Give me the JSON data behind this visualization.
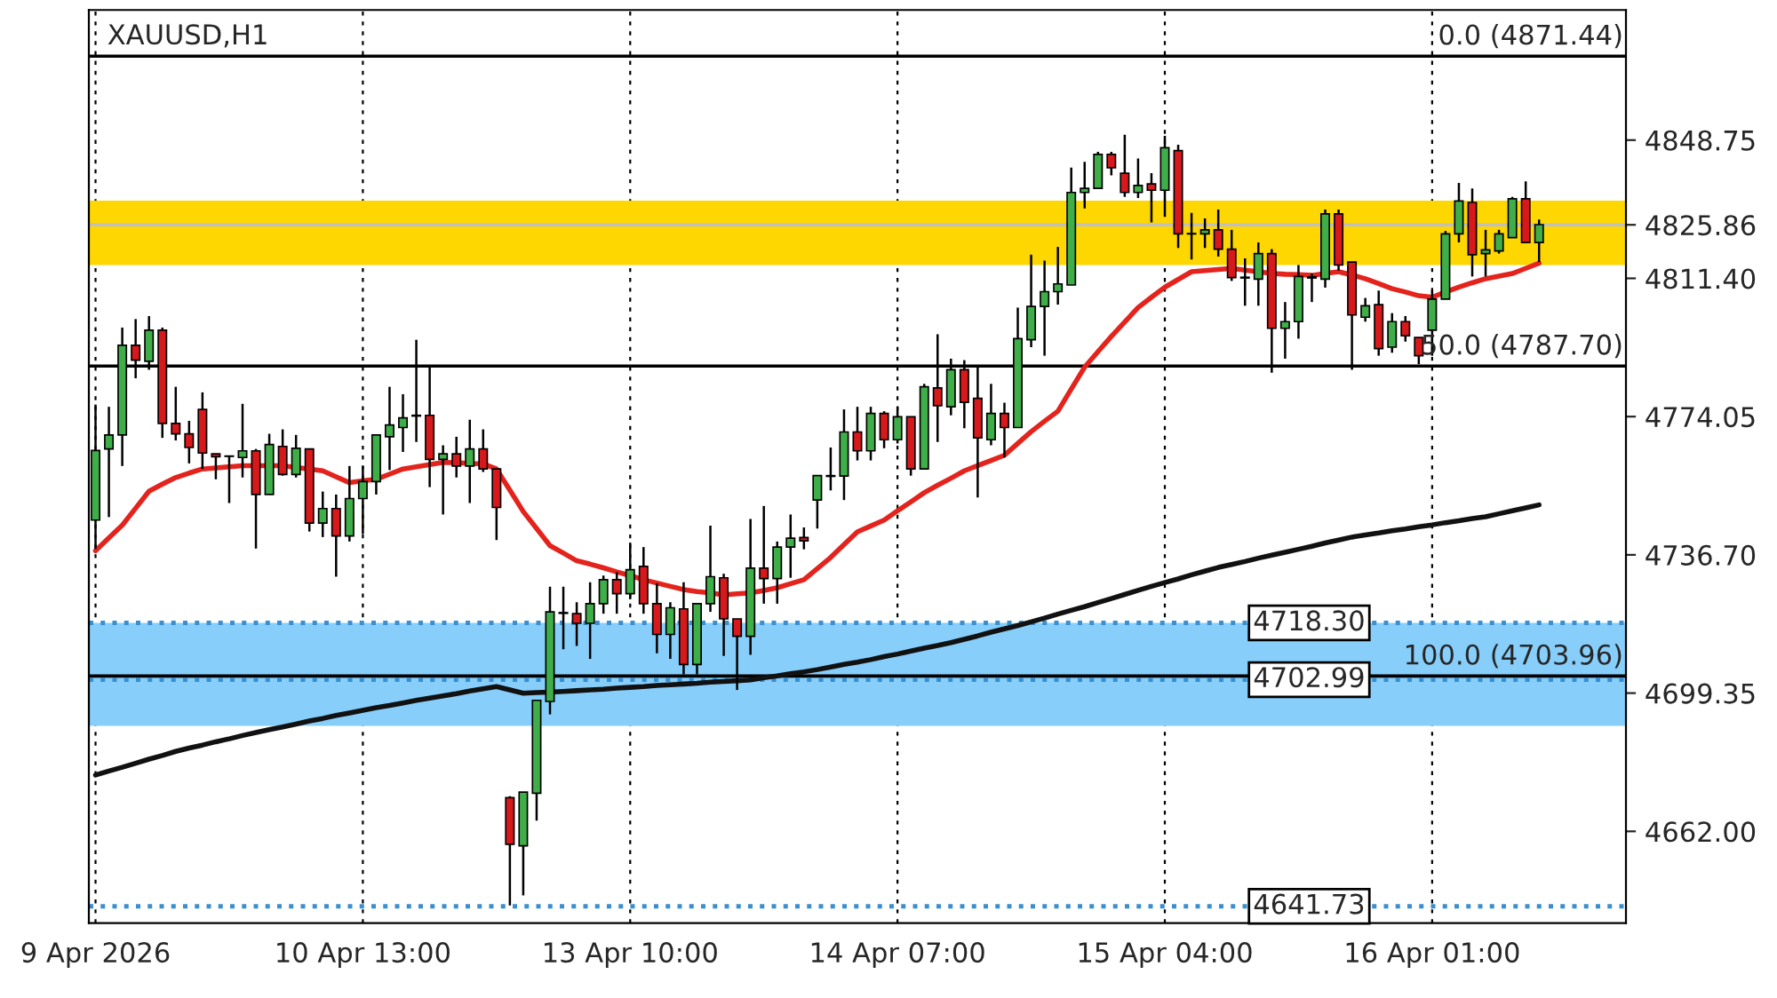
{
  "chart_data": {
    "type": "candlestick",
    "title": "XAUUSD,H1",
    "categories": [
      "9 Apr 2026",
      null,
      null,
      null,
      null,
      null,
      null,
      null,
      null,
      null,
      null,
      null,
      null,
      null,
      null,
      null,
      null,
      null,
      null,
      null,
      "10 Apr 13:00",
      null,
      null,
      null,
      null,
      null,
      null,
      null,
      null,
      null,
      null,
      null,
      null,
      null,
      null,
      null,
      null,
      null,
      null,
      null,
      "13 Apr 10:00",
      null,
      null,
      null,
      null,
      null,
      null,
      null,
      null,
      null,
      null,
      null,
      null,
      null,
      null,
      null,
      null,
      null,
      null,
      null,
      "14 Apr 07:00",
      null,
      null,
      null,
      null,
      null,
      null,
      null,
      null,
      null,
      null,
      null,
      null,
      null,
      null,
      null,
      null,
      null,
      null,
      null,
      "15 Apr 04:00",
      null,
      null,
      null,
      null,
      null,
      null,
      null,
      null,
      null,
      null,
      null,
      null,
      null,
      null,
      null,
      null,
      null,
      null,
      null,
      "16 Apr 01:00",
      null,
      null,
      null,
      null,
      null,
      null,
      null,
      null
    ],
    "ohlc": [
      [
        4746.1,
        4777.3,
        4738.3,
        4764.9
      ],
      [
        4765.3,
        4776.7,
        4746.9,
        4769.1
      ],
      [
        4769.1,
        4798.1,
        4760.7,
        4793.3
      ],
      [
        4793.3,
        4800.4,
        4784.4,
        4789.3
      ],
      [
        4789.0,
        4801.2,
        4786.7,
        4797.4
      ],
      [
        4797.4,
        4798.1,
        4768.3,
        4772.2
      ],
      [
        4772.2,
        4782.1,
        4767.6,
        4769.4
      ],
      [
        4769.4,
        4772.9,
        4761.4,
        4765.7
      ],
      [
        4776.0,
        4780.6,
        4759.9,
        4764.2
      ],
      [
        4764.0,
        4764.0,
        4757.1,
        4763.2
      ],
      [
        4763.4,
        4763.4,
        4750.7,
        4763.3
      ],
      [
        4763.0,
        4777.5,
        4757.6,
        4764.8
      ],
      [
        4764.8,
        4765.3,
        4738.4,
        4753.0
      ],
      [
        4753.0,
        4769.4,
        4753.0,
        4766.5
      ],
      [
        4766.0,
        4770.6,
        4758.1,
        4758.4
      ],
      [
        4758.4,
        4769.1,
        4757.6,
        4765.5
      ],
      [
        4765.3,
        4765.3,
        4743.0,
        4745.3
      ],
      [
        4745.3,
        4753.8,
        4741.5,
        4749.2
      ],
      [
        4749.2,
        4753.0,
        4730.8,
        4741.8
      ],
      [
        4741.8,
        4760.7,
        4740.3,
        4751.9
      ],
      [
        4751.9,
        4760.7,
        4742.3,
        4756.5
      ],
      [
        4756.5,
        4769.1,
        4753.0,
        4769.1
      ],
      [
        4768.6,
        4782.1,
        4759.6,
        4771.8
      ],
      [
        4771.1,
        4780.1,
        4764.5,
        4773.7
      ],
      [
        4774.2,
        4794.8,
        4767.2,
        4774.4
      ],
      [
        4774.4,
        4787.4,
        4755.0,
        4762.5
      ],
      [
        4762.5,
        4766.3,
        4747.6,
        4764.0
      ],
      [
        4764.0,
        4768.6,
        4757.6,
        4760.7
      ],
      [
        4760.7,
        4773.2,
        4750.7,
        4765.3
      ],
      [
        4765.3,
        4770.6,
        4759.1,
        4759.9
      ],
      [
        4759.9,
        4759.9,
        4740.7,
        4749.5
      ],
      [
        4671.1,
        4671.5,
        4642.0,
        4658.5
      ],
      [
        4658.1,
        4672.6,
        4644.7,
        4672.6
      ],
      [
        4672.3,
        4697.4,
        4664.9,
        4697.4
      ],
      [
        4697.1,
        4728.1,
        4693.6,
        4721.3
      ],
      [
        4721.1,
        4728.1,
        4711.2,
        4720.9
      ],
      [
        4720.8,
        4723.9,
        4712.1,
        4718.2
      ],
      [
        4718.2,
        4729.3,
        4708.6,
        4723.5
      ],
      [
        4723.5,
        4731.1,
        4720.8,
        4730.0
      ],
      [
        4730.0,
        4732.0,
        4720.8,
        4726.2
      ],
      [
        4726.2,
        4740.0,
        4724.7,
        4732.7
      ],
      [
        4733.6,
        4738.8,
        4720.8,
        4723.5
      ],
      [
        4723.5,
        4729.0,
        4710.1,
        4715.2
      ],
      [
        4715.2,
        4723.9,
        4708.6,
        4722.4
      ],
      [
        4722.1,
        4729.3,
        4704.4,
        4707.1
      ],
      [
        4707.1,
        4723.5,
        4704.4,
        4723.5
      ],
      [
        4723.5,
        4744.6,
        4721.3,
        4730.8
      ],
      [
        4730.5,
        4731.6,
        4709.4,
        4719.4
      ],
      [
        4719.4,
        4719.4,
        4700.2,
        4714.7
      ],
      [
        4714.7,
        4746.4,
        4709.7,
        4733.1
      ],
      [
        4733.1,
        4749.9,
        4723.5,
        4730.3
      ],
      [
        4730.3,
        4740.3,
        4723.5,
        4738.8
      ],
      [
        4738.8,
        4747.6,
        4730.5,
        4741.2
      ],
      [
        4741.4,
        4744.1,
        4738.2,
        4740.5
      ],
      [
        4751.5,
        4758.1,
        4743.8,
        4758.1
      ],
      [
        4757.9,
        4765.7,
        4754.1,
        4758.1
      ],
      [
        4758.0,
        4776.0,
        4751.5,
        4769.9
      ],
      [
        4769.9,
        4776.7,
        4762.2,
        4764.8
      ],
      [
        4764.8,
        4776.7,
        4762.2,
        4774.9
      ],
      [
        4774.9,
        4775.5,
        4765.5,
        4767.8
      ],
      [
        4767.8,
        4776.7,
        4766.8,
        4774.0
      ],
      [
        4774.0,
        4774.0,
        4758.1,
        4759.9
      ],
      [
        4759.9,
        4782.9,
        4759.9,
        4782.1
      ],
      [
        4781.8,
        4796.3,
        4767.2,
        4777.0
      ],
      [
        4776.7,
        4789.7,
        4774.4,
        4786.7
      ],
      [
        4786.7,
        4789.3,
        4770.9,
        4777.9
      ],
      [
        4779.0,
        4787.8,
        4752.2,
        4768.3
      ],
      [
        4767.8,
        4782.9,
        4766.3,
        4774.9
      ],
      [
        4774.9,
        4777.8,
        4763.0,
        4771.1
      ],
      [
        4771.1,
        4803.5,
        4771.1,
        4795.1
      ],
      [
        4794.8,
        4817.8,
        4792.8,
        4803.8
      ],
      [
        4803.8,
        4816.2,
        4790.5,
        4807.8
      ],
      [
        4807.8,
        4819.9,
        4804.3,
        4809.9
      ],
      [
        4809.6,
        4841.3,
        4809.6,
        4834.6
      ],
      [
        4834.6,
        4842.9,
        4830.3,
        4835.7
      ],
      [
        4835.7,
        4845.6,
        4835.7,
        4844.9
      ],
      [
        4844.9,
        4845.6,
        4839.2,
        4841.3
      ],
      [
        4839.8,
        4850.2,
        4833.4,
        4834.6
      ],
      [
        4834.6,
        4843.8,
        4833.1,
        4836.5
      ],
      [
        4836.9,
        4839.8,
        4826.5,
        4835.2
      ],
      [
        4835.2,
        4849.9,
        4828.0,
        4846.7
      ],
      [
        4845.9,
        4847.5,
        4819.6,
        4823.4
      ],
      [
        4823.4,
        4829.1,
        4816.5,
        4823.5
      ],
      [
        4823.4,
        4827.6,
        4819.6,
        4824.5
      ],
      [
        4824.5,
        4830.0,
        4817.3,
        4819.3
      ],
      [
        4819.3,
        4824.5,
        4810.7,
        4811.6
      ],
      [
        4811.7,
        4816.8,
        4804.0,
        4811.5
      ],
      [
        4811.2,
        4821.1,
        4804.0,
        4818.1
      ],
      [
        4818.1,
        4819.3,
        4785.9,
        4797.9
      ],
      [
        4797.9,
        4805.0,
        4789.7,
        4799.7
      ],
      [
        4799.7,
        4815.0,
        4795.1,
        4811.9
      ],
      [
        4811.8,
        4812.7,
        4805.0,
        4811.5
      ],
      [
        4811.2,
        4830.0,
        4808.9,
        4828.8
      ],
      [
        4828.8,
        4830.0,
        4813.5,
        4815.0
      ],
      [
        4815.8,
        4815.8,
        4786.7,
        4801.5
      ],
      [
        4800.9,
        4806.1,
        4799.7,
        4804.0
      ],
      [
        4804.3,
        4808.1,
        4790.5,
        4792.4
      ],
      [
        4792.8,
        4802.0,
        4791.3,
        4799.7
      ],
      [
        4799.7,
        4801.2,
        4794.3,
        4795.9
      ],
      [
        4795.4,
        4795.4,
        4788.2,
        4790.5
      ],
      [
        4797.4,
        4808.1,
        4790.5,
        4805.8
      ],
      [
        4805.8,
        4824.2,
        4805.8,
        4823.4
      ],
      [
        4823.4,
        4837.2,
        4821.1,
        4832.3
      ],
      [
        4831.9,
        4835.7,
        4811.9,
        4817.8
      ],
      [
        4818.1,
        4824.5,
        4811.9,
        4819.1
      ],
      [
        4818.8,
        4824.5,
        4818.1,
        4823.4
      ],
      [
        4822.4,
        4833.4,
        4822.4,
        4832.9
      ],
      [
        4832.9,
        4837.6,
        4821.1,
        4821.1
      ],
      [
        4821.1,
        4827.3,
        4815.8,
        4825.9
      ]
    ],
    "series": [
      {
        "type": "line",
        "color": "#e3231c",
        "values": [
          4737.8,
          4741.3,
          4744.7,
          4749.3,
          4753.9,
          4755.8,
          4757.6,
          4758.8,
          4759.9,
          4760.2,
          4760.5,
          4760.8,
          4760.8,
          4760.8,
          4760.8,
          4760.3,
          4759.9,
          4759.4,
          4757.8,
          4756.2,
          4756.7,
          4757.1,
          4758.5,
          4759.9,
          4760.5,
          4761.1,
          4761.7,
          4761.6,
          4761.4,
          4761.3,
          4759.9,
          4754.2,
          4748.4,
          4743.8,
          4739.2,
          4737.2,
          4735.1,
          4734.2,
          4733.2,
          4732.1,
          4731.1,
          4730.0,
          4729.1,
          4728.2,
          4727.3,
          4726.8,
          4726.4,
          4725.9,
          4726.2,
          4726.4,
          4727.1,
          4727.8,
          4728.9,
          4730.0,
          4733.0,
          4736.0,
          4739.5,
          4742.9,
          4744.5,
          4746.1,
          4748.6,
          4751.0,
          4753.5,
          4755.5,
          4757.4,
          4759.4,
          4760.8,
          4762.2,
          4763.6,
          4766.8,
          4770.0,
          4772.8,
          4775.5,
          4781.5,
          4787.4,
          4791.6,
          4795.7,
          4799.6,
          4803.5,
          4806.3,
          4809.0,
          4811.1,
          4813.2,
          4813.5,
          4813.8,
          4814.1,
          4813.6,
          4813.2,
          4812.7,
          4812.5,
          4812.4,
          4812.2,
          4812.7,
          4813.2,
          4812.3,
          4811.3,
          4810.0,
          4808.6,
          4807.7,
          4806.7,
          4806.3,
          4807.7,
          4809.0,
          4810.2,
          4811.3,
          4812.0,
          4812.7,
          4814.1,
          4815.5
        ]
      },
      {
        "type": "line",
        "color": "#111111",
        "values": [
          4677.2,
          4678.3,
          4679.3,
          4680.4,
          4681.5,
          4682.5,
          4683.6,
          4684.5,
          4685.3,
          4686.2,
          4687.0,
          4687.9,
          4688.7,
          4689.5,
          4690.2,
          4691.0,
          4691.8,
          4692.5,
          4693.3,
          4694.0,
          4694.7,
          4695.4,
          4696.0,
          4696.7,
          4697.4,
          4698.0,
          4698.6,
          4699.2,
          4699.9,
          4700.5,
          4701.1,
          4700.2,
          4699.3,
          4699.5,
          4699.6,
          4699.8,
          4700.0,
          4700.2,
          4700.4,
          4700.7,
          4700.9,
          4701.1,
          4701.4,
          4701.6,
          4701.8,
          4702.0,
          4702.3,
          4702.5,
          4702.7,
          4702.9,
          4703.5,
          4704.0,
          4704.6,
          4705.1,
          4705.7,
          4706.4,
          4707.1,
          4707.7,
          4708.4,
          4709.2,
          4709.9,
          4710.7,
          4711.5,
          4712.2,
          4713.0,
          4713.9,
          4714.8,
          4715.8,
          4716.7,
          4717.6,
          4718.6,
          4719.6,
          4720.7,
          4721.7,
          4722.7,
          4723.8,
          4724.9,
          4726.0,
          4727.1,
          4728.2,
          4729.2,
          4730.2,
          4731.3,
          4732.3,
          4733.3,
          4734.1,
          4734.9,
          4735.8,
          4736.6,
          4737.4,
          4738.2,
          4739.0,
          4739.9,
          4740.7,
          4741.5,
          4742.1,
          4742.6,
          4743.2,
          4743.7,
          4744.3,
          4744.8,
          4745.4,
          4745.9,
          4746.5,
          4747.0,
          4747.8,
          4748.6,
          4749.4,
          4750.2
        ]
      }
    ],
    "ylim": [
      4637.2,
      4883.9
    ],
    "yticks": [
      {
        "value": 4662.0,
        "label": "4662.00"
      },
      {
        "value": 4699.35,
        "label": "4699.35"
      },
      {
        "value": 4736.7,
        "label": "4736.70"
      },
      {
        "value": 4774.05,
        "label": "4774.05"
      },
      {
        "value": 4811.4,
        "label": "4811.40"
      },
      {
        "value": 4825.86,
        "label": "4825.86"
      },
      {
        "value": 4848.75,
        "label": "4848.75"
      }
    ],
    "bands": [
      {
        "axis": "y",
        "from": 4815.0,
        "to": 4832.4,
        "color": "#ffd700"
      },
      {
        "axis": "y",
        "from": 4690.5,
        "to": 4705.2,
        "color": "#87cefa"
      },
      {
        "axis": "y",
        "from": 4702.99,
        "to": 4718.3,
        "color": "#87cefa"
      }
    ],
    "ref_lines": [
      {
        "axis": "y",
        "value": 4871.44,
        "label": "0.0 (4871.44)",
        "color": "#000000",
        "line_style": "solid"
      },
      {
        "axis": "y",
        "value": 4787.7,
        "label": "50.0 (4787.70)",
        "color": "#000000",
        "line_style": "solid"
      },
      {
        "axis": "y",
        "value": 4703.96,
        "label": "100.0 (4703.96)",
        "color": "#000000",
        "line_style": "solid"
      },
      {
        "axis": "y",
        "value": 4825.86,
        "color": "#c0c0c0",
        "line_style": "solid"
      },
      {
        "axis": "y",
        "value": 4718.3,
        "label": "4718.30",
        "color": "#3a8fd0",
        "line_style": "dotted"
      },
      {
        "axis": "y",
        "value": 4702.99,
        "label": "4702.99",
        "color": "#3a8fd0",
        "line_style": "dotted"
      },
      {
        "axis": "y",
        "value": 4641.73,
        "label": "4641.73",
        "color": "#3a8fd0",
        "line_style": "dotted"
      }
    ],
    "grid": "x"
  }
}
